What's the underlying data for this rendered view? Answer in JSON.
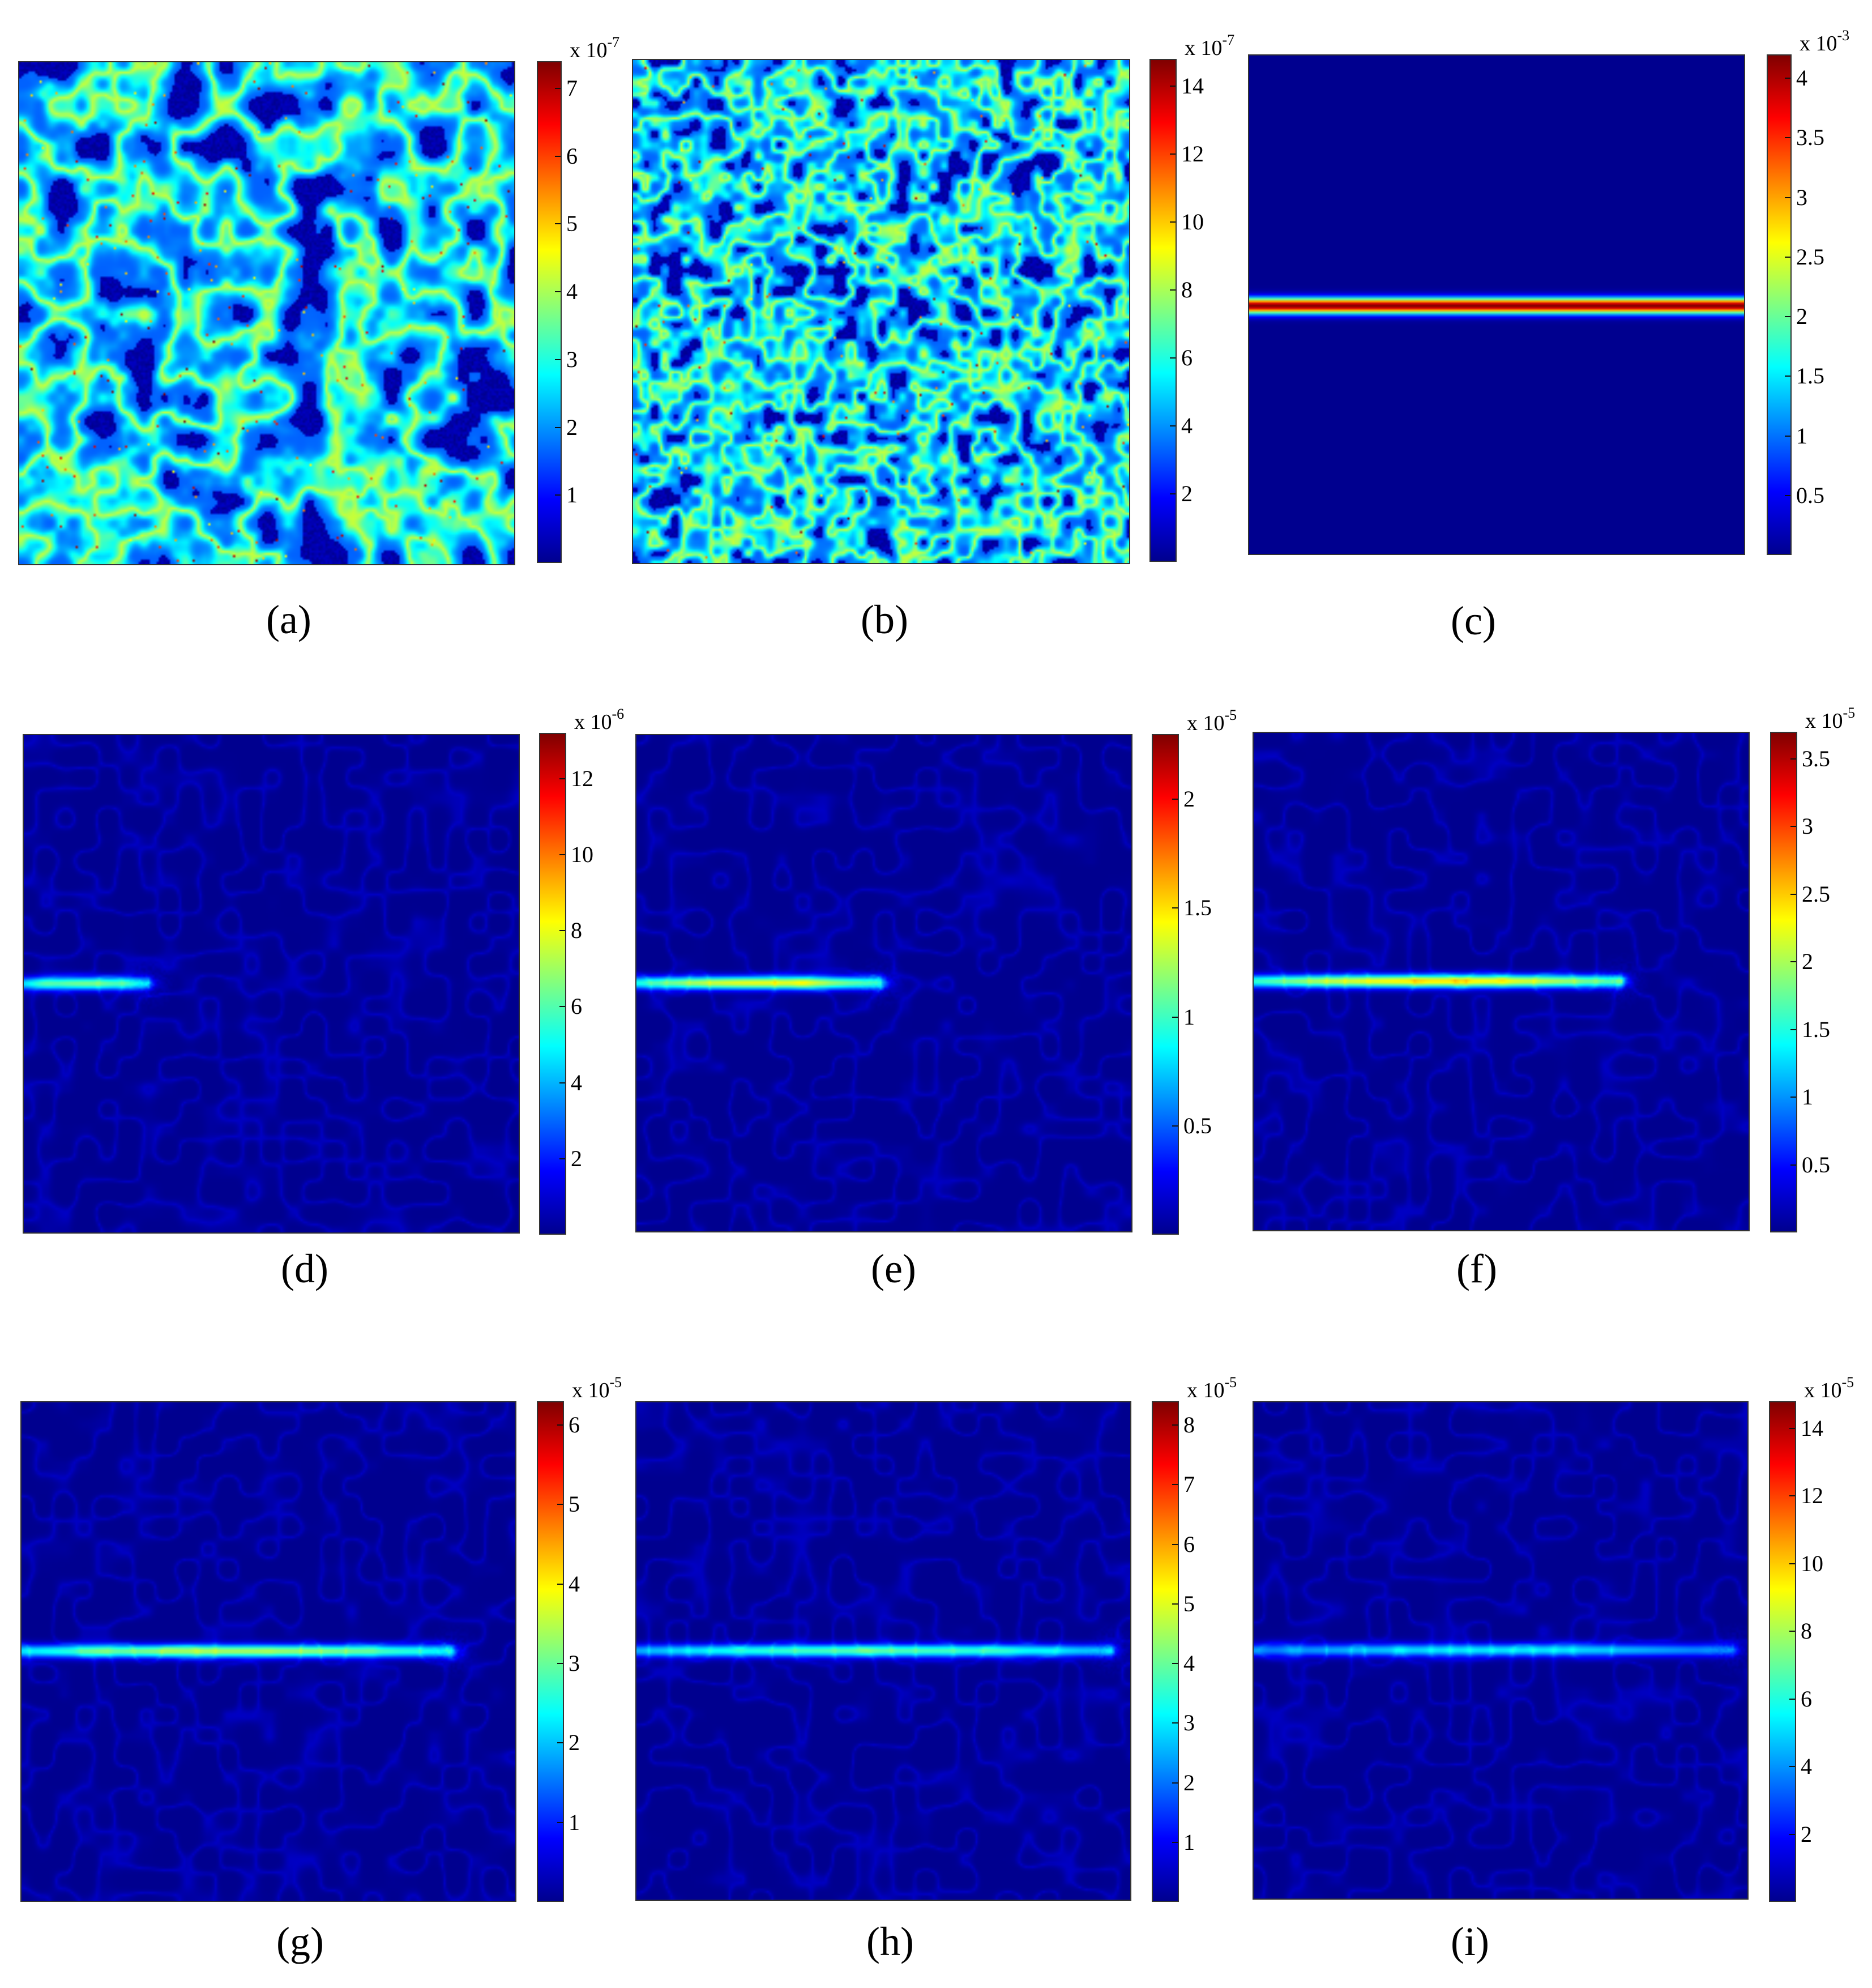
{
  "colormap": [
    "#00008f",
    "#0000ff",
    "#0080ff",
    "#00ffff",
    "#80ff80",
    "#ffff00",
    "#ff8000",
    "#ff0000",
    "#800000"
  ],
  "chart_data": [
    {
      "id": "a",
      "type": "heatmap",
      "caption": "(a)",
      "pattern": "random-network",
      "colorbar": {
        "multiplier": "x 10",
        "exponent": "-7",
        "ticks": [
          "1",
          "2",
          "3",
          "4",
          "5",
          "6",
          "7"
        ],
        "tick_values": [
          1,
          2,
          3,
          4,
          5,
          6,
          7
        ],
        "min": 0,
        "max": 7.4
      }
    },
    {
      "id": "b",
      "type": "heatmap",
      "caption": "(b)",
      "pattern": "random-network-fine",
      "colorbar": {
        "multiplier": "x 10",
        "exponent": "-7",
        "ticks": [
          "2",
          "4",
          "6",
          "8",
          "10",
          "12",
          "14"
        ],
        "tick_values": [
          2,
          4,
          6,
          8,
          10,
          12,
          14
        ],
        "min": 0,
        "max": 14.8
      }
    },
    {
      "id": "c",
      "type": "heatmap",
      "caption": "(c)",
      "pattern": "band-full",
      "band_length": 1.0,
      "band_peak": 4.2,
      "colorbar": {
        "multiplier": "x 10",
        "exponent": "-3",
        "ticks": [
          "0.5",
          "1",
          "1.5",
          "2",
          "2.5",
          "3",
          "3.5",
          "4"
        ],
        "tick_values": [
          0.5,
          1,
          1.5,
          2,
          2.5,
          3,
          3.5,
          4
        ],
        "min": 0,
        "max": 4.2
      }
    },
    {
      "id": "d",
      "type": "heatmap",
      "caption": "(d)",
      "pattern": "crack",
      "band_length": 0.25,
      "band_peak": 6.5,
      "colorbar": {
        "multiplier": "x 10",
        "exponent": "-6",
        "ticks": [
          "2",
          "4",
          "6",
          "8",
          "10",
          "12"
        ],
        "tick_values": [
          2,
          4,
          6,
          8,
          10,
          12
        ],
        "min": 0,
        "max": 13.2
      }
    },
    {
      "id": "e",
      "type": "heatmap",
      "caption": "(e)",
      "pattern": "crack",
      "band_length": 0.49,
      "band_peak": 1.4,
      "colorbar": {
        "multiplier": "x 10",
        "exponent": "-5",
        "ticks": [
          "0.5",
          "1",
          "1.5",
          "2"
        ],
        "tick_values": [
          0.5,
          1,
          1.5,
          2
        ],
        "min": 0,
        "max": 2.3
      }
    },
    {
      "id": "f",
      "type": "heatmap",
      "caption": "(f)",
      "pattern": "crack",
      "band_length": 0.74,
      "band_peak": 2.4,
      "colorbar": {
        "multiplier": "x 10",
        "exponent": "-5",
        "ticks": [
          "0.5",
          "1",
          "1.5",
          "2",
          "2.5",
          "3",
          "3.5"
        ],
        "tick_values": [
          0.5,
          1,
          1.5,
          2,
          2.5,
          3,
          3.5
        ],
        "min": 0,
        "max": 3.7
      }
    },
    {
      "id": "g",
      "type": "heatmap",
      "caption": "(g)",
      "pattern": "crack",
      "band_length": 0.87,
      "band_peak": 3.4,
      "colorbar": {
        "multiplier": "x 10",
        "exponent": "-5",
        "ticks": [
          "1",
          "2",
          "3",
          "4",
          "5",
          "6"
        ],
        "tick_values": [
          1,
          2,
          3,
          4,
          5,
          6
        ],
        "min": 0,
        "max": 6.3
      }
    },
    {
      "id": "h",
      "type": "heatmap",
      "caption": "(h)",
      "pattern": "crack",
      "band_length": 0.96,
      "band_peak": 3.8,
      "colorbar": {
        "multiplier": "x 10",
        "exponent": "-5",
        "ticks": [
          "1",
          "2",
          "3",
          "4",
          "5",
          "6",
          "7",
          "8"
        ],
        "tick_values": [
          1,
          2,
          3,
          4,
          5,
          6,
          7,
          8
        ],
        "min": 0,
        "max": 8.4
      }
    },
    {
      "id": "i",
      "type": "heatmap",
      "caption": "(i)",
      "pattern": "crack",
      "band_length": 0.97,
      "band_peak": 5.2,
      "colorbar": {
        "multiplier": "x 10",
        "exponent": "-5",
        "ticks": [
          "2",
          "4",
          "6",
          "8",
          "10",
          "12",
          "14"
        ],
        "tick_values": [
          2,
          4,
          6,
          8,
          10,
          12,
          14
        ],
        "min": 0,
        "max": 14.8
      }
    }
  ]
}
